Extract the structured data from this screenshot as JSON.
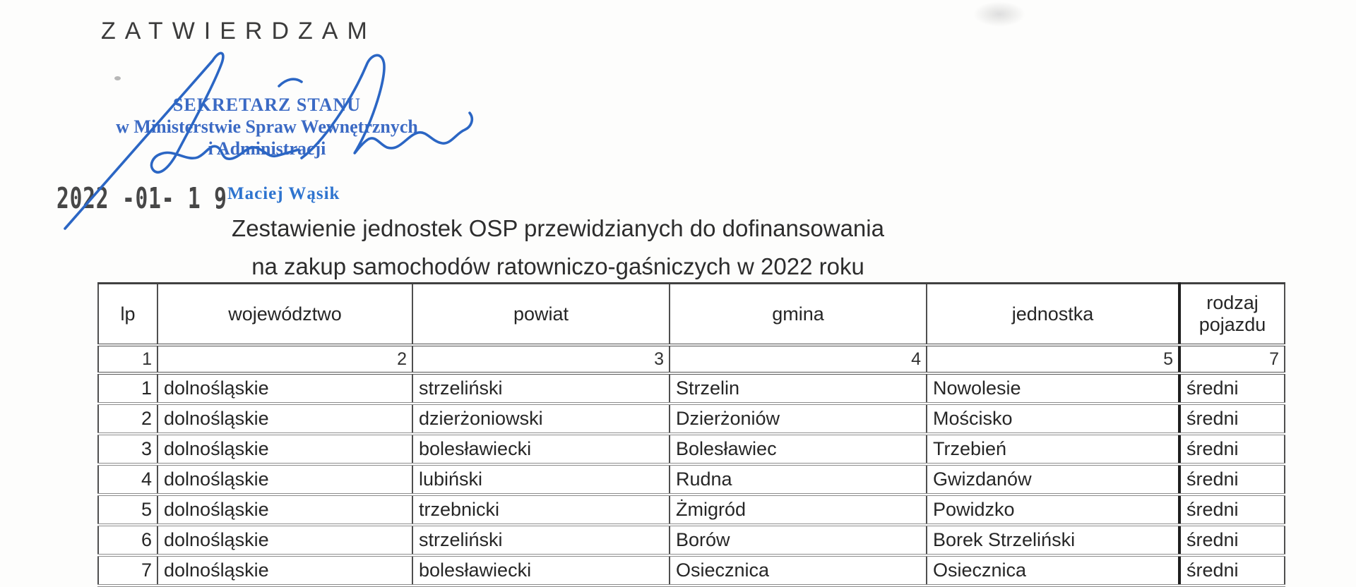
{
  "document": {
    "approval": {
      "label": "ZATWIERDZAM",
      "stamp": {
        "line1": "SEKRETARZ STANU",
        "line2": "w Ministerstwie Spraw Wewnętrznych",
        "line3": "i Administracji"
      },
      "date_stamp": "2022 -01- 1 9",
      "signer": "Maciej Wąsik"
    },
    "title": {
      "line1": "Zestawienie jednostek OSP przewidzianych do dofinansowania",
      "line2": "na zakup samochodów ratowniczo-gaśniczych w 2022 roku"
    },
    "table": {
      "headers": [
        "lp",
        "województwo",
        "powiat",
        "gmina",
        "jednostka",
        "rodzaj\npojazdu"
      ],
      "column_numbers": [
        "1",
        "2",
        "3",
        "4",
        "5",
        "7"
      ],
      "rows": [
        [
          "1",
          "dolnośląskie",
          "strzeliński",
          "Strzelin",
          "Nowolesie",
          "średni"
        ],
        [
          "2",
          "dolnośląskie",
          "dzierżoniowski",
          "Dzierżoniów",
          "Mościsko",
          "średni"
        ],
        [
          "3",
          "dolnośląskie",
          "bolesławiecki",
          "Bolesławiec",
          "Trzebień",
          "średni"
        ],
        [
          "4",
          "dolnośląskie",
          "lubiński",
          "Rudna",
          "Gwizdanów",
          "średni"
        ],
        [
          "5",
          "dolnośląskie",
          "trzebnicki",
          "Żmigród",
          "Powidzko",
          "średni"
        ],
        [
          "6",
          "dolnośląskie",
          "strzeliński",
          "Borów",
          "Borek Strzeliński",
          "średni"
        ],
        [
          "7",
          "dolnośląskie",
          "bolesławiecki",
          "Osiecznica",
          "Osiecznica",
          "średni"
        ]
      ]
    },
    "colors": {
      "ink_blue": "#2b66c4",
      "stamp_blue": "#2d5fc0",
      "name_blue": "#2e74cf",
      "text_dark": "#2f2f2f"
    }
  }
}
